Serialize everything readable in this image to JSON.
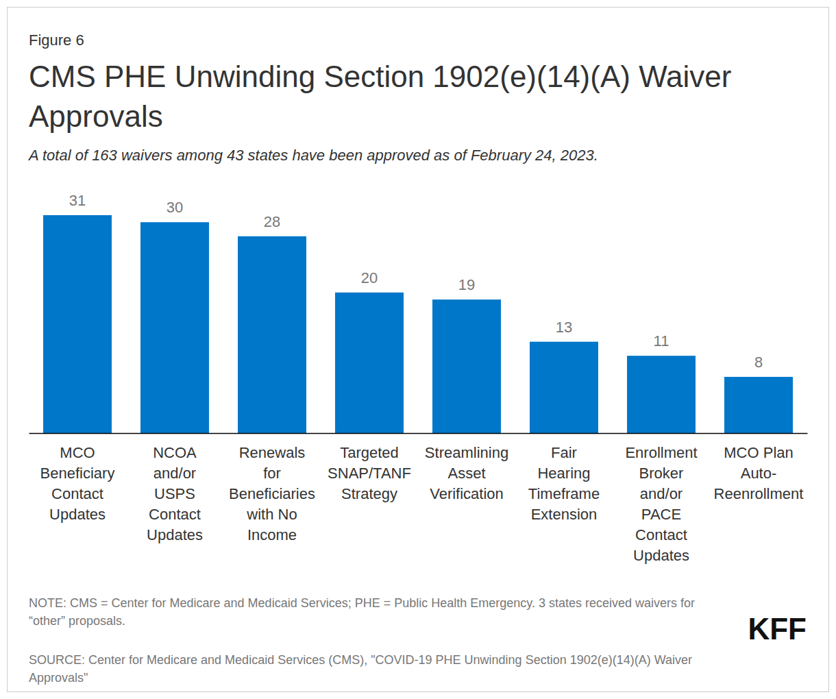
{
  "chart_data": {
    "type": "bar",
    "figure_label": "Figure 6",
    "title": "CMS PHE Unwinding Section 1902(e)(14)(A) Waiver Approvals",
    "subtitle": "A total of 163 waivers among 43 states have been approved as of February 24, 2023.",
    "categories": [
      "MCO Beneficiary Contact Updates",
      "NCOA and/or USPS Contact Updates",
      "Renewals for Beneficiaries with No Income",
      "Targeted SNAP/TANF Strategy",
      "Streamlining Asset Verification",
      "Fair Hearing Timeframe Extension",
      "Enrollment Broker and/or PACE Contact Updates",
      "MCO Plan Auto-Reenrollment"
    ],
    "values": [
      31,
      30,
      28,
      20,
      19,
      13,
      11,
      8
    ],
    "color": "#0077c8",
    "ylim": [
      0,
      31
    ],
    "grid": false,
    "data_labels": true,
    "tick_labels": "x",
    "note": "NOTE: CMS = Center for Medicare and Medicaid Services; PHE = Public Health Emergency. 3 states received waivers for “other” proposals.",
    "source": "SOURCE: Center for Medicare and Medicaid Services (CMS), \"COVID-19 PHE Unwinding Section 1902(e)(14)(A) Waiver Approvals\"",
    "logo": "KFF"
  }
}
